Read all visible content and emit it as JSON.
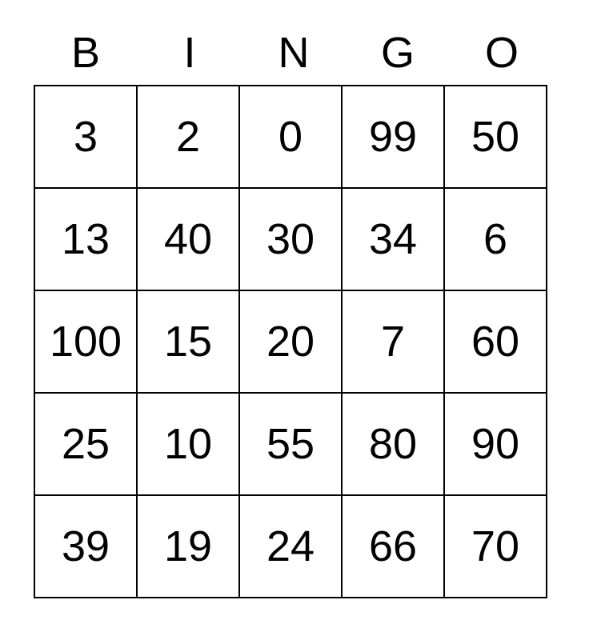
{
  "card": {
    "title": "BINGO"
  },
  "header": {
    "letters": [
      "B",
      "I",
      "N",
      "G",
      "O"
    ]
  },
  "grid": {
    "rows": [
      [
        "3",
        "2",
        "0",
        "99",
        "50"
      ],
      [
        "13",
        "40",
        "30",
        "34",
        "6"
      ],
      [
        "100",
        "15",
        "20",
        "7",
        "60"
      ],
      [
        "25",
        "10",
        "55",
        "80",
        "90"
      ],
      [
        "39",
        "19",
        "24",
        "66",
        "70"
      ]
    ]
  },
  "colors": {
    "text": "#000000",
    "border": "#000000",
    "background": "#ffffff"
  }
}
